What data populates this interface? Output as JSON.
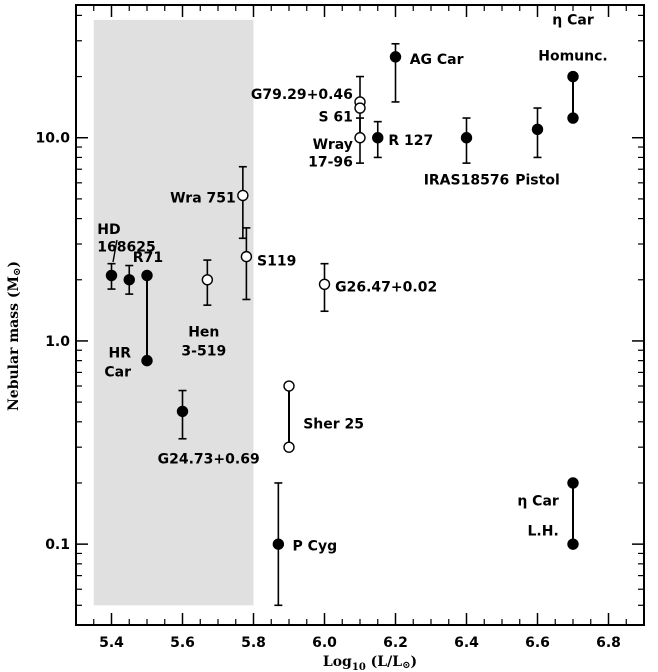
{
  "chart_data": {
    "type": "scatter",
    "xlabel": "Log10 (L/L⊙)",
    "xlabel_main": "Log",
    "xlabel_sub": "10",
    "xlabel_rest": " (L/L",
    "xlabel_end": ")",
    "ylabel": "Nebular mass (M⊙)",
    "ylabel_main": "Nebular mass (M",
    "ylabel_end": ")",
    "xlim": [
      5.3,
      6.9
    ],
    "ylim": [
      0.04,
      45
    ],
    "yscale": "log",
    "x_ticks": [
      5.4,
      5.6,
      5.8,
      6.0,
      6.2,
      6.4,
      6.6,
      6.8
    ],
    "x_tick_labels": [
      "5.4",
      "5.6",
      "5.8",
      "6.0",
      "6.2",
      "6.4",
      "6.6",
      "6.8"
    ],
    "y_ticks": [
      0.1,
      1.0,
      10.0
    ],
    "y_tick_labels": [
      "0.1",
      "1.0",
      "10.0"
    ],
    "shaded_region": {
      "x": [
        5.35,
        5.8
      ],
      "y": [
        0.05,
        38
      ],
      "color": "#e0e0e0"
    },
    "colors": {
      "axis": "#000000",
      "filled": "#000000",
      "open": "#ffffff",
      "shade": "#e0e0e0"
    },
    "points": [
      {
        "x": 5.4,
        "y": 2.1,
        "filled": true,
        "err": [
          1.8,
          2.4
        ]
      },
      {
        "x": 5.45,
        "y": 2.0,
        "filled": true,
        "err": [
          1.7,
          2.35
        ]
      },
      {
        "x": 5.5,
        "y": 2.1,
        "filled": true
      },
      {
        "x": 5.5,
        "y": 0.8,
        "filled": true
      },
      {
        "x": 5.6,
        "y": 0.45,
        "filled": true,
        "err": [
          0.33,
          0.57
        ]
      },
      {
        "x": 5.67,
        "y": 2.0,
        "filled": false,
        "err": [
          1.5,
          2.5
        ]
      },
      {
        "x": 5.77,
        "y": 5.2,
        "filled": false,
        "err": [
          3.2,
          7.2
        ]
      },
      {
        "x": 5.78,
        "y": 2.6,
        "filled": false,
        "err": [
          1.6,
          3.6
        ]
      },
      {
        "x": 5.87,
        "y": 0.1,
        "filled": true,
        "err": [
          0.05,
          0.2
        ]
      },
      {
        "x": 5.9,
        "y": 0.6,
        "filled": false
      },
      {
        "x": 5.9,
        "y": 0.3,
        "filled": false
      },
      {
        "x": 6.0,
        "y": 1.9,
        "filled": false,
        "err": [
          1.4,
          2.4
        ]
      },
      {
        "x": 6.1,
        "y": 15.0,
        "filled": false,
        "err": [
          10.0,
          20.0
        ]
      },
      {
        "x": 6.1,
        "y": 14.0,
        "filled": false
      },
      {
        "x": 6.1,
        "y": 10.0,
        "filled": false,
        "err": [
          7.5,
          12.5
        ]
      },
      {
        "x": 6.15,
        "y": 10.0,
        "filled": true,
        "err": [
          8.0,
          12.0
        ]
      },
      {
        "x": 6.2,
        "y": 25.0,
        "filled": true,
        "err": [
          15.0,
          29.0
        ]
      },
      {
        "x": 6.4,
        "y": 10.0,
        "filled": true,
        "err": [
          7.5,
          12.5
        ]
      },
      {
        "x": 6.6,
        "y": 11.0,
        "filled": true,
        "err": [
          8.0,
          14.0
        ]
      },
      {
        "x": 6.7,
        "y": 20.0,
        "filled": true
      },
      {
        "x": 6.7,
        "y": 12.5,
        "filled": true
      },
      {
        "x": 6.7,
        "y": 0.2,
        "filled": true
      },
      {
        "x": 6.7,
        "y": 0.1,
        "filled": true
      }
    ],
    "connectors": [
      {
        "x": 5.5,
        "y": [
          0.8,
          2.1
        ]
      },
      {
        "x": 5.9,
        "y": [
          0.3,
          0.6
        ]
      },
      {
        "x": 6.7,
        "y": [
          12.5,
          20.0
        ]
      },
      {
        "x": 6.7,
        "y": [
          0.1,
          0.2
        ]
      }
    ],
    "annotations": [
      {
        "text": "HD",
        "x": 5.36,
        "y": 3.35,
        "anchor": "start"
      },
      {
        "text": "168625",
        "x": 5.36,
        "y": 2.75,
        "anchor": "start"
      },
      {
        "text": "R71",
        "x": 5.46,
        "y": 2.45,
        "anchor": "start"
      },
      {
        "text": "HR",
        "x": 5.455,
        "y": 0.83,
        "anchor": "end"
      },
      {
        "text": "Car",
        "x": 5.455,
        "y": 0.67,
        "anchor": "end"
      },
      {
        "text": "G24.73+0.69",
        "x": 5.53,
        "y": 0.25,
        "anchor": "start"
      },
      {
        "text": "Hen",
        "x": 5.66,
        "y": 1.05,
        "anchor": "middle"
      },
      {
        "text": "3-519",
        "x": 5.66,
        "y": 0.85,
        "anchor": "middle"
      },
      {
        "text": "Wra 751",
        "x": 5.75,
        "y": 4.8,
        "anchor": "end"
      },
      {
        "text": "S119",
        "x": 5.81,
        "y": 2.35,
        "anchor": "start"
      },
      {
        "text": "G26.47+0.02",
        "x": 6.03,
        "y": 1.75,
        "anchor": "start"
      },
      {
        "text": "Sher 25",
        "x": 5.94,
        "y": 0.37,
        "anchor": "start"
      },
      {
        "text": "P Cyg",
        "x": 5.91,
        "y": 0.093,
        "anchor": "start"
      },
      {
        "text": "G79.29+0.46",
        "x": 6.08,
        "y": 15.5,
        "anchor": "end"
      },
      {
        "text": "S 61",
        "x": 6.08,
        "y": 12.0,
        "anchor": "end"
      },
      {
        "text": "Wray",
        "x": 6.08,
        "y": 8.8,
        "anchor": "end"
      },
      {
        "text": "17-96",
        "x": 6.08,
        "y": 7.2,
        "anchor": "end"
      },
      {
        "text": "R 127",
        "x": 6.18,
        "y": 9.2,
        "anchor": "start"
      },
      {
        "text": "AG Car",
        "x": 6.24,
        "y": 23.0,
        "anchor": "start"
      },
      {
        "text": "IRAS18576",
        "x": 6.4,
        "y": 5.9,
        "anchor": "middle"
      },
      {
        "text": "Pistol",
        "x": 6.6,
        "y": 5.9,
        "anchor": "middle"
      },
      {
        "text": "η Car",
        "x": 6.7,
        "y": 36.0,
        "anchor": "middle"
      },
      {
        "text": "Homunc.",
        "x": 6.7,
        "y": 24.0,
        "anchor": "middle"
      },
      {
        "text": "η Car",
        "x": 6.66,
        "y": 0.155,
        "anchor": "end"
      },
      {
        "text": "L.H.",
        "x": 6.66,
        "y": 0.11,
        "anchor": "end"
      }
    ]
  }
}
